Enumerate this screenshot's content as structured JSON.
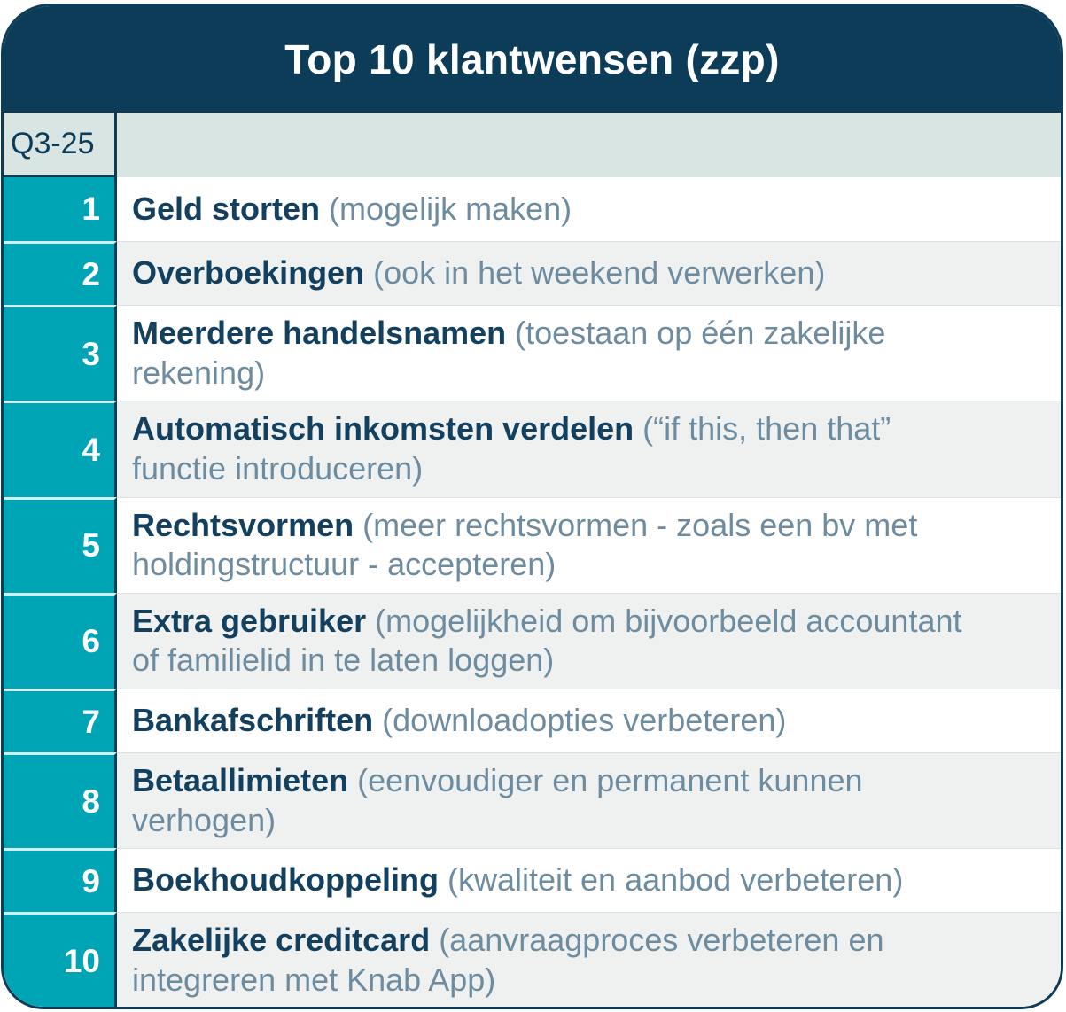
{
  "card": {
    "title": "Top 10 klantwensen (zzp)",
    "quarter": "Q3-25"
  },
  "items": [
    {
      "rank": "1",
      "lead": "Geld storten",
      "rest": "(mogelijk maken)"
    },
    {
      "rank": "2",
      "lead": "Overboekingen",
      "rest": "(ook in het weekend verwerken)"
    },
    {
      "rank": "3",
      "lead": "Meerdere handelsnamen",
      "rest": "(toestaan op één zakelijke rekening)"
    },
    {
      "rank": "4",
      "lead": "Automatisch inkomsten verdelen",
      "rest": "(“if this, then that” functie introduceren)"
    },
    {
      "rank": "5",
      "lead": "Rechtsvormen",
      "rest": "(meer rechtsvormen - zoals een bv met holdingstructuur - accepteren)"
    },
    {
      "rank": "6",
      "lead": "Extra gebruiker",
      "rest": "(mogelijkheid om bijvoorbeeld accountant of familielid in te laten loggen)"
    },
    {
      "rank": "7",
      "lead": "Bankafschriften",
      "rest": "(downloadopties verbeteren)"
    },
    {
      "rank": "8",
      "lead": "Betaallimieten",
      "rest": "(eenvoudiger en permanent kunnen verhogen)"
    },
    {
      "rank": "9",
      "lead": "Boekhoudkoppeling",
      "rest": "(kwaliteit en aanbod verbeteren)"
    },
    {
      "rank": "10",
      "lead": "Zakelijke creditcard",
      "rest": "(aanvraagproces verbeteren en integreren met Knab App)"
    }
  ],
  "colors": {
    "header_navy": "#0c3c57",
    "rank_teal": "#00a5b5",
    "quarter_row_bg": "#d8e5e2",
    "row_bg": "#ffffff",
    "alt_row_bg": "#eef1f0",
    "title_text": "#ffffff",
    "wish_title_text": "#13405e",
    "wish_detail_text": "#6e8ca0"
  }
}
